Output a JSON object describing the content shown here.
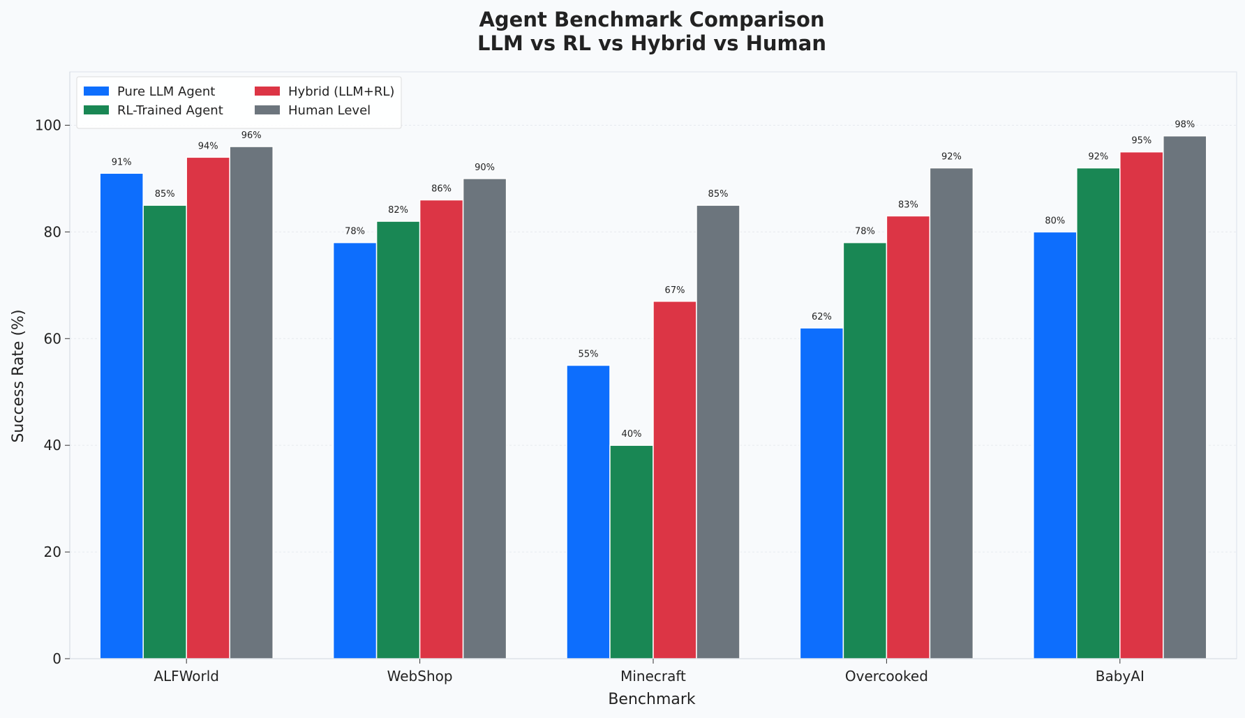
{
  "chart_data": {
    "type": "bar",
    "title": "Agent Benchmark Comparison",
    "subtitle": "LLM vs RL vs Hybrid vs Human",
    "xlabel": "Benchmark",
    "ylabel": "Success Rate (%)",
    "categories": [
      "ALFWorld",
      "WebShop",
      "Minecraft",
      "Overcooked",
      "BabyAI"
    ],
    "series": [
      {
        "name": "Pure LLM Agent",
        "color": "#0d6efd",
        "values": [
          91,
          78,
          55,
          62,
          80
        ]
      },
      {
        "name": "RL-Trained Agent",
        "color": "#198754",
        "values": [
          85,
          82,
          40,
          78,
          92
        ]
      },
      {
        "name": "Hybrid (LLM+RL)",
        "color": "#dc3545",
        "values": [
          94,
          86,
          67,
          83,
          95
        ]
      },
      {
        "name": "Human Level",
        "color": "#6c757d",
        "values": [
          96,
          90,
          85,
          92,
          98
        ]
      }
    ],
    "ylim": [
      0,
      110
    ],
    "yticks": [
      0,
      20,
      40,
      60,
      80,
      100
    ],
    "value_suffix": "%",
    "grid": true,
    "legend_position": "upper-left",
    "legend_columns": 2
  }
}
